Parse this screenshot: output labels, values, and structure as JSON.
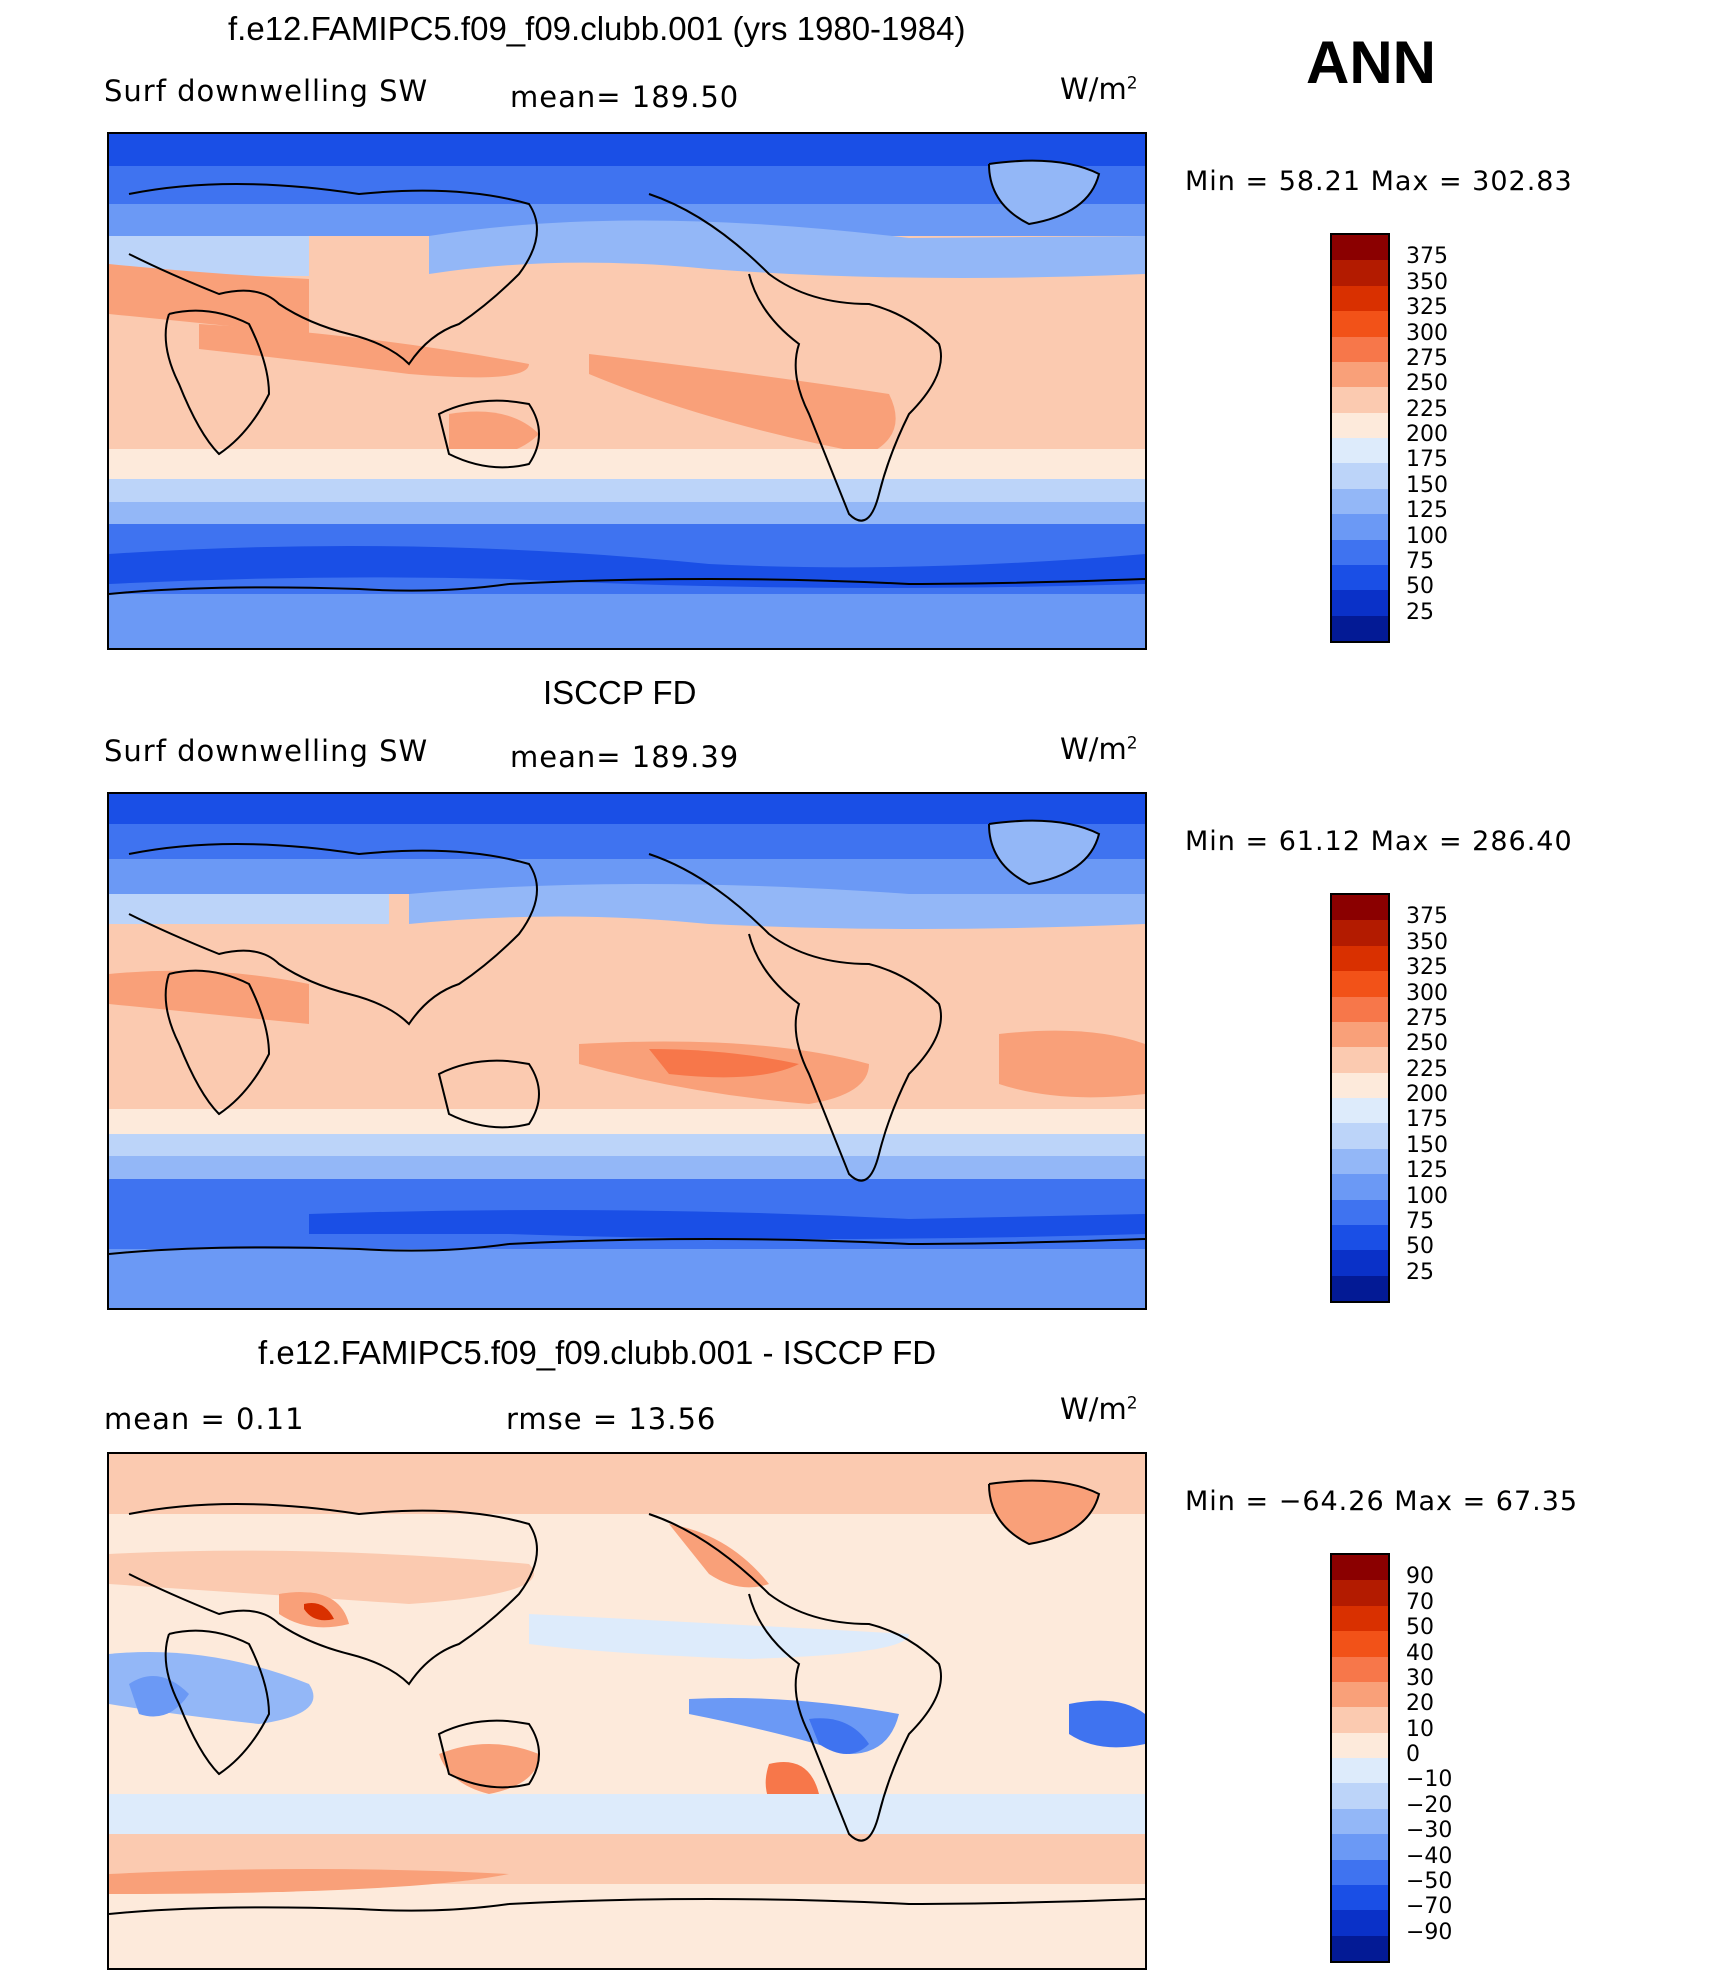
{
  "season": "ANN",
  "units": {
    "base": "W/m",
    "sup": "2"
  },
  "panels": [
    {
      "title": "f.e12.FAMIPC5.f09_f09.clubb.001 (yrs 1980-1984)",
      "left_label": "Surf  downwelling SW",
      "stat_label": "mean=  189.50",
      "minmax": "Min  =    58.21  Max  =  302.83"
    },
    {
      "title": "ISCCP FD",
      "left_label": "Surf  downwelling SW",
      "stat_label": "mean=  189.39",
      "minmax": "Min  =    61.12  Max  =  286.40"
    },
    {
      "title": "f.e12.FAMIPC5.f09_f09.clubb.001 - ISCCP FD",
      "left_label": "mean  =     0.11",
      "stat_label": "rmse  =    13.56",
      "minmax": "Min  = −64.26  Max  =    67.35"
    }
  ],
  "colorbar_abs": {
    "labels": [
      "375",
      "350",
      "325",
      "300",
      "275",
      "250",
      "225",
      "200",
      "175",
      "150",
      "125",
      "100",
      "75",
      "50",
      "25"
    ],
    "colors": [
      "#8b0000",
      "#b31b00",
      "#d93000",
      "#f25218",
      "#f7774a",
      "#f9a079",
      "#fbcab0",
      "#fdeadb",
      "#ddebfb",
      "#bcd4f9",
      "#93b7f7",
      "#6b99f5",
      "#3f73f0",
      "#1a4fe6",
      "#0a31c8",
      "#031a95"
    ]
  },
  "colorbar_diff": {
    "labels": [
      "90",
      "70",
      "50",
      "40",
      "30",
      "20",
      "10",
      "0",
      "−10",
      "−20",
      "−30",
      "−40",
      "−50",
      "−70",
      "−90"
    ],
    "colors": [
      "#8b0000",
      "#b31b00",
      "#d93000",
      "#f25218",
      "#f7774a",
      "#f9a079",
      "#fbcab0",
      "#fdeadb",
      "#ddebfb",
      "#bcd4f9",
      "#93b7f7",
      "#6b99f5",
      "#3f73f0",
      "#1a4fe6",
      "#0a31c8",
      "#031a95"
    ]
  },
  "chart_data": [
    {
      "type": "heatmap",
      "title": "f.e12.FAMIPC5.f09_f09.clubb.001 (yrs 1980-1984)",
      "subtitle": "Surf  downwelling SW",
      "mean": 189.5,
      "min": 58.21,
      "max": 302.83,
      "colorbar_levels": [
        25,
        50,
        75,
        100,
        125,
        150,
        175,
        200,
        225,
        250,
        275,
        300,
        325,
        350,
        375
      ]
    },
    {
      "type": "heatmap",
      "title": "ISCCP FD",
      "subtitle": "Surf  downwelling SW",
      "mean": 189.39,
      "min": 61.12,
      "max": 286.4,
      "colorbar_levels": [
        25,
        50,
        75,
        100,
        125,
        150,
        175,
        200,
        225,
        250,
        275,
        300,
        325,
        350,
        375
      ]
    },
    {
      "type": "heatmap",
      "title": "f.e12.FAMIPC5.f09_f09.clubb.001 - ISCCP FD",
      "mean": 0.11,
      "rmse": 13.56,
      "min": -64.26,
      "max": 67.35,
      "colorbar_levels": [
        -90,
        -70,
        -50,
        -40,
        -30,
        -20,
        -10,
        0,
        10,
        20,
        30,
        40,
        50,
        70,
        90
      ]
    }
  ]
}
